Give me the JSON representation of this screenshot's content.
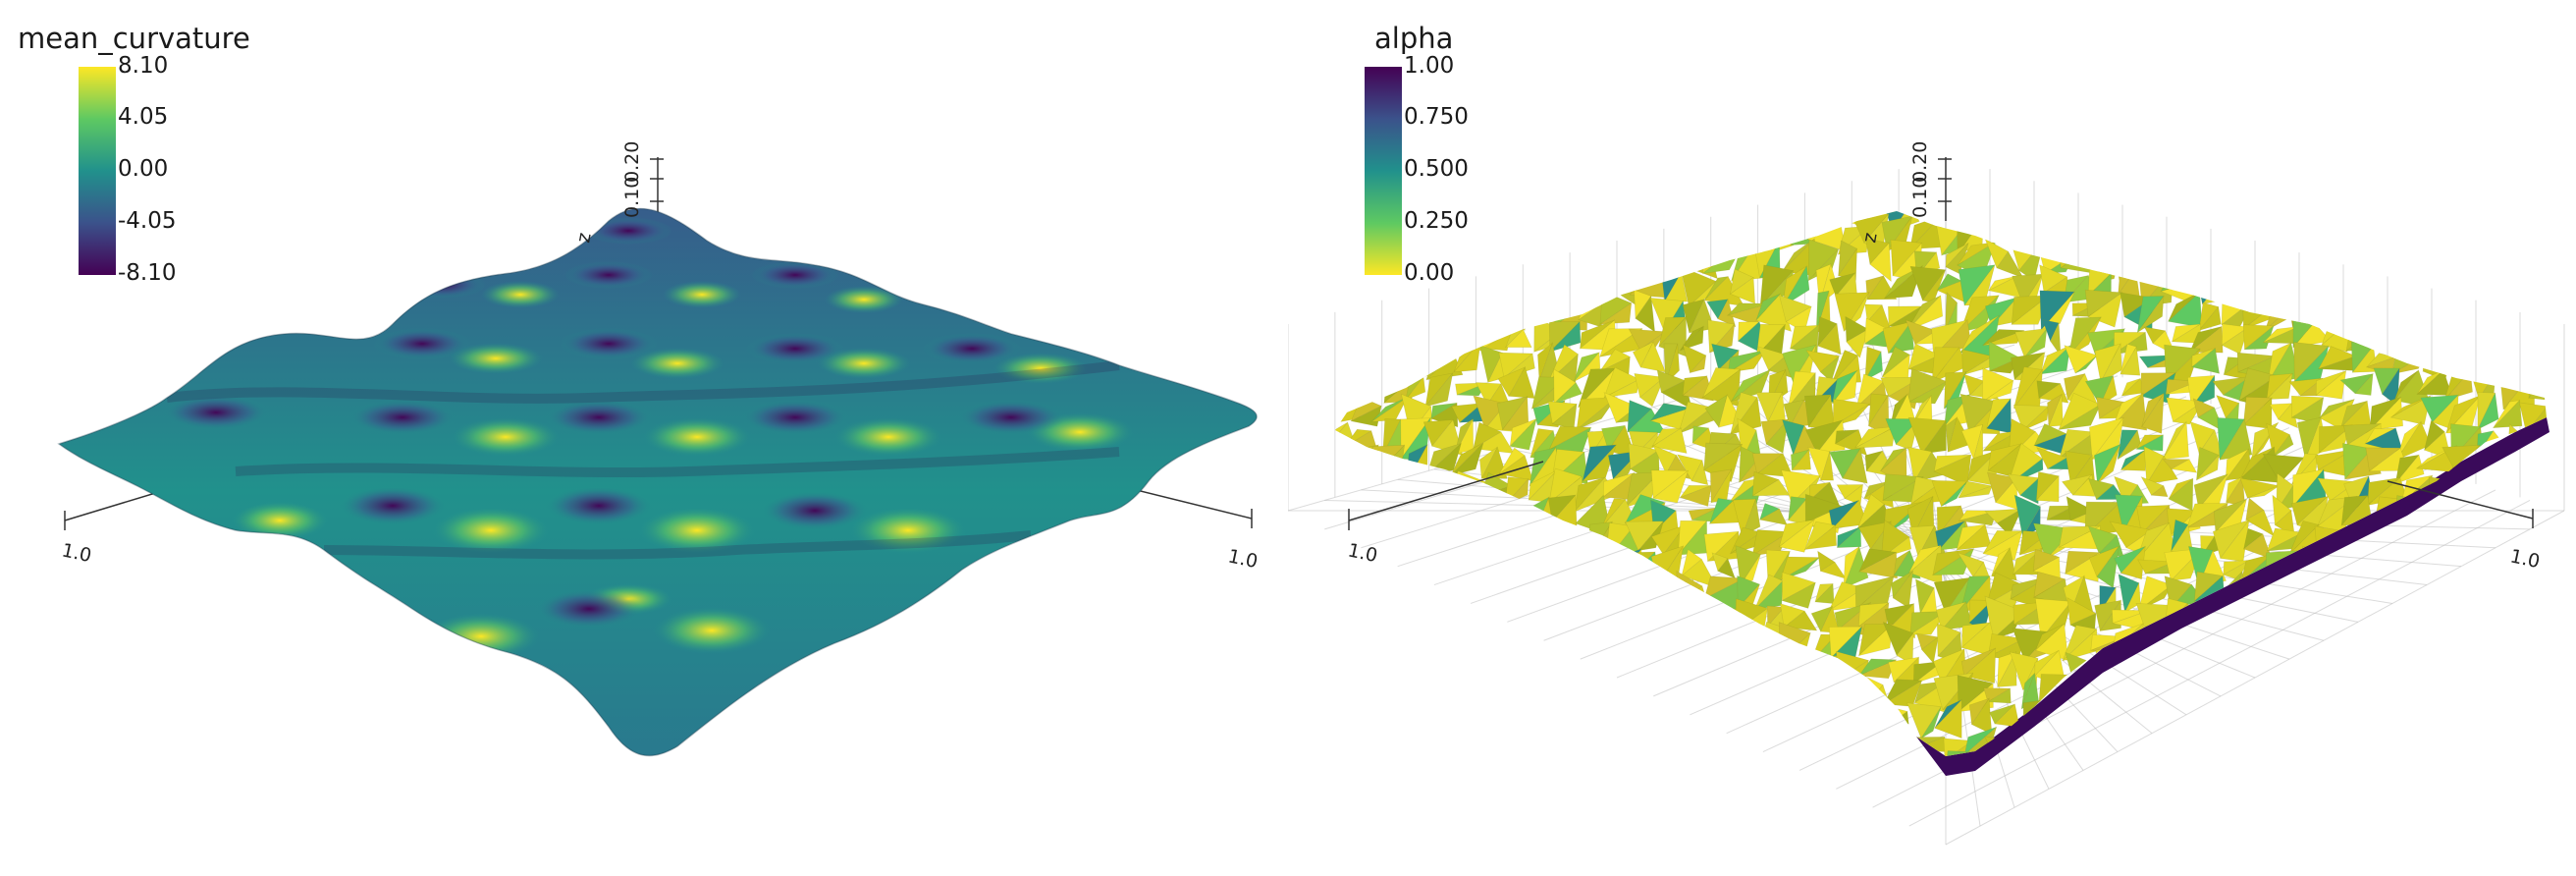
{
  "panels": [
    {
      "scalar_name": "mean_curvature",
      "colorbar": {
        "ticks": [
          "8.10",
          "4.05",
          "0.00",
          "-4.05",
          "-8.10"
        ],
        "top_color": "#fde725",
        "bottom_color": "#440154",
        "colormap": "viridis"
      },
      "axes": {
        "x_tick": "1.0",
        "y_tick": "1.0",
        "z_label": "z",
        "z_ticks": [
          "0.10",
          "0.20"
        ]
      }
    },
    {
      "scalar_name": "alpha",
      "colorbar": {
        "ticks": [
          "1.00",
          "0.750",
          "0.500",
          "0.250",
          "0.00"
        ],
        "top_color": "#440154",
        "bottom_color": "#fde725",
        "colormap": "viridis_r"
      },
      "axes": {
        "x_tick": "1.0",
        "y_tick": "1.0",
        "z_label": "z",
        "z_ticks": [
          "0.10",
          "0.20"
        ]
      }
    }
  ]
}
